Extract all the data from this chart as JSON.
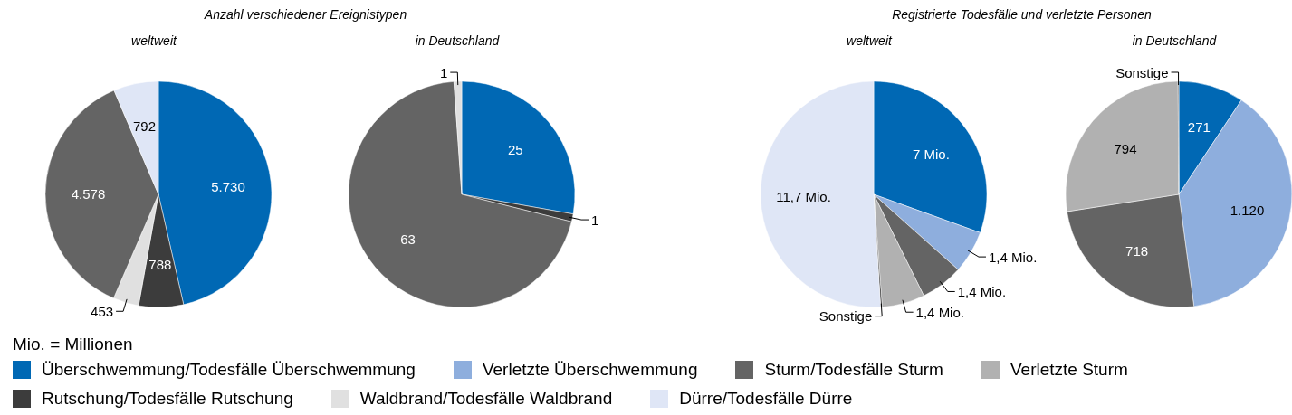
{
  "chart_data": [
    {
      "type": "pie",
      "title": "Anzahl verschiedener Ereignistypen",
      "subtitle": "weltweit",
      "categories": [
        "Überschwemmung/Todesfälle Überschwemmung",
        "Rutschung/Todesfälle Rutschung",
        "Waldbrand/Todesfälle Waldbrand",
        "Sturm/Todesfälle Sturm",
        "Dürre/Todesfälle Dürre"
      ],
      "values": [
        5730,
        788,
        453,
        4578,
        792
      ],
      "value_labels": [
        "5.730",
        "788",
        "453",
        "4.578",
        "792"
      ],
      "colors": [
        "#0068b4",
        "#3c3c3c",
        "#e0e0e0",
        "#646464",
        "#dfe6f6"
      ],
      "legend": "bottom",
      "annotations": [
        "Mio. = Millionen"
      ]
    },
    {
      "type": "pie",
      "subtitle": "in Deutschland",
      "categories": [
        null,
        null,
        null,
        null
      ],
      "values": [
        25,
        1,
        63,
        1
      ],
      "value_labels": [
        "25",
        "1",
        "63",
        "1"
      ],
      "colors": [
        "#0068b4",
        "#3c3c3c",
        "#646464",
        "#e0e0e0"
      ]
    },
    {
      "type": "pie",
      "title": "Registrierte Todesfälle und verletzte Personen",
      "subtitle": "weltweit",
      "categories": [
        null,
        "Verletzte Überschwemmung",
        null,
        "Verletzte Sturm",
        "Sonstige",
        null
      ],
      "values": [
        7,
        1.4,
        1.4,
        1.4,
        0.05,
        11.7
      ],
      "value_labels": [
        "7 Mio.",
        "1,4 Mio.",
        "1,4 Mio.",
        "1,4 Mio.",
        null,
        "11,7 Mio."
      ],
      "colors": [
        "#0068b4",
        "#8eaedd",
        "#646464",
        "#b1b1b1",
        "#1e1e1e",
        "#dfe6f6"
      ],
      "legend": "bottom"
    },
    {
      "type": "pie",
      "subtitle": "in Deutschland",
      "categories": [
        null,
        null,
        null,
        null,
        "Sonstige"
      ],
      "values": [
        271,
        1120,
        718,
        794,
        3
      ],
      "value_labels": [
        "271",
        "1.120",
        "718",
        "794",
        null
      ],
      "colors": [
        "#0068b4",
        "#8eaedd",
        "#646464",
        "#b1b1b1",
        "#1e1e1e"
      ]
    }
  ]
}
